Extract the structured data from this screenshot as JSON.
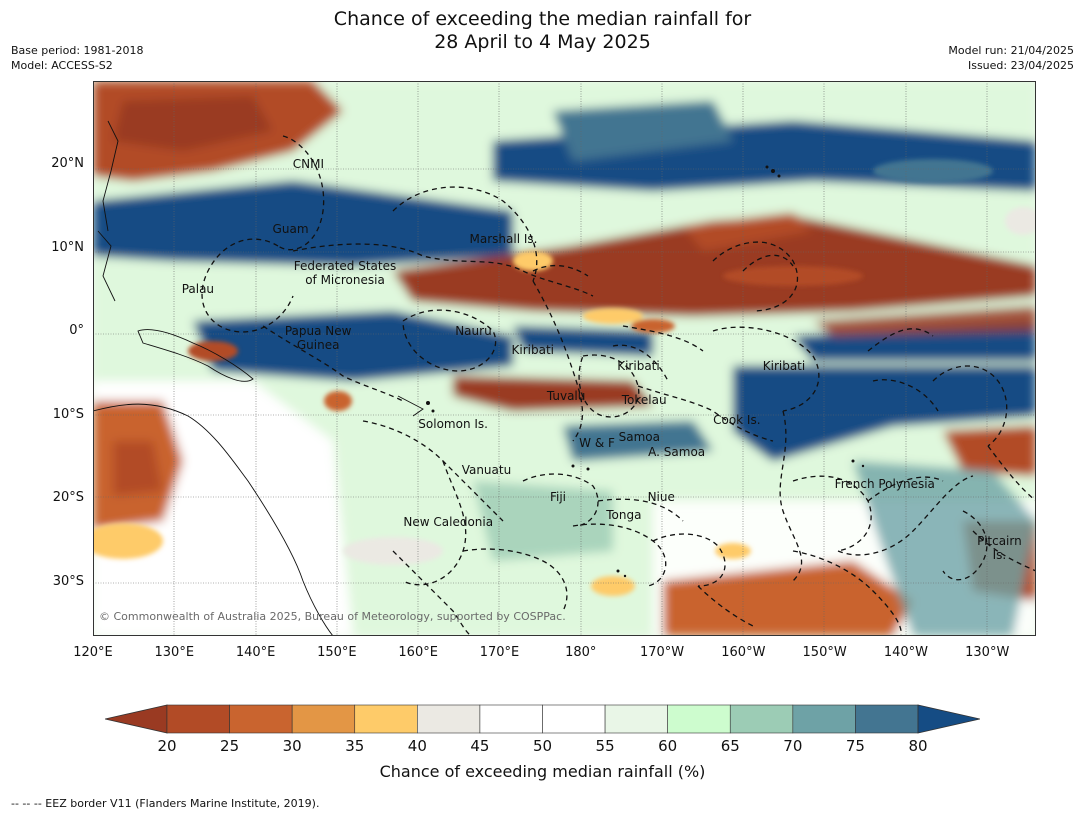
{
  "title": {
    "line1": "Chance of exceeding the median rainfall for",
    "line2": "28 April to 4 May 2025"
  },
  "meta": {
    "base_period": "Base period: 1981-2018",
    "model": "Model: ACCESS-S2",
    "model_run": "Model run: 21/04/2025",
    "issued": "Issued: 23/04/2025"
  },
  "axes": {
    "lat_ticks": [
      {
        "label": "20°N",
        "value": 20
      },
      {
        "label": "10°N",
        "value": 10
      },
      {
        "label": "0°",
        "value": 0
      },
      {
        "label": "10°S",
        "value": -10
      },
      {
        "label": "20°S",
        "value": -20
      },
      {
        "label": "30°S",
        "value": -30
      }
    ],
    "lon_ticks": [
      {
        "label": "120°E",
        "value": 120
      },
      {
        "label": "130°E",
        "value": 130
      },
      {
        "label": "140°E",
        "value": 140
      },
      {
        "label": "150°E",
        "value": 150
      },
      {
        "label": "160°E",
        "value": 160
      },
      {
        "label": "170°E",
        "value": 170
      },
      {
        "label": "180°",
        "value": 180
      },
      {
        "label": "170°W",
        "value": 190
      },
      {
        "label": "160°W",
        "value": 200
      },
      {
        "label": "150°W",
        "value": 210
      },
      {
        "label": "140°W",
        "value": 220
      },
      {
        "label": "130°W",
        "value": 230
      }
    ],
    "lon_range": [
      120,
      236
    ],
    "lat_range": [
      -36.5,
      30
    ]
  },
  "places": [
    {
      "label": "CNMI",
      "lon": 146.5,
      "lat": 20.0
    },
    {
      "label": "Guam",
      "lon": 144.3,
      "lat": 12.3
    },
    {
      "label": "Marshall Is.",
      "lon": 170.5,
      "lat": 11.1
    },
    {
      "label": "Federated States",
      "lon": 151.0,
      "lat": 7.8
    },
    {
      "label": "of Micronesia",
      "lon": 151.0,
      "lat": 6.1
    },
    {
      "label": "Palau",
      "lon": 132.9,
      "lat": 5.1
    },
    {
      "label": "Nauru",
      "lon": 166.8,
      "lat": 0.1
    },
    {
      "label": "Papua New",
      "lon": 147.7,
      "lat": 0.1
    },
    {
      "label": "Guinea",
      "lon": 147.7,
      "lat": -1.6
    },
    {
      "label": "Kiribati",
      "lon": 174.1,
      "lat": -2.2
    },
    {
      "label": "Kiribati",
      "lon": 187.1,
      "lat": -4.2
    },
    {
      "label": "Kiribati",
      "lon": 205.0,
      "lat": -4.2
    },
    {
      "label": "Tuvalu",
      "lon": 178.2,
      "lat": -7.8
    },
    {
      "label": "Tokelau",
      "lon": 187.8,
      "lat": -8.2
    },
    {
      "label": "Solomon Is.",
      "lon": 164.3,
      "lat": -11.1
    },
    {
      "label": "Cook Is.",
      "lon": 199.2,
      "lat": -10.6
    },
    {
      "label": "W & F",
      "lon": 182.0,
      "lat": -13.4
    },
    {
      "label": "Samoa",
      "lon": 187.2,
      "lat": -12.6
    },
    {
      "label": "A. Samoa",
      "lon": 191.8,
      "lat": -14.5
    },
    {
      "label": "Vanuatu",
      "lon": 168.4,
      "lat": -16.6
    },
    {
      "label": "French Polynesia",
      "lon": 217.4,
      "lat": -18.3
    },
    {
      "label": "Fiji",
      "lon": 177.2,
      "lat": -19.9
    },
    {
      "label": "Niue",
      "lon": 189.9,
      "lat": -19.9
    },
    {
      "label": "Tonga",
      "lon": 185.3,
      "lat": -22.0
    },
    {
      "label": "New Caledonia",
      "lon": 163.7,
      "lat": -22.9
    },
    {
      "label": "Pitcairn",
      "lon": 231.5,
      "lat": -25.1
    },
    {
      "label": "Is.",
      "lon": 231.5,
      "lat": -26.8
    }
  ],
  "copyright": "© Commonwealth of Australia 2025, Bureau of Meteorology, supported by COSPPac.",
  "legend": {
    "ticks": [
      "20",
      "25",
      "30",
      "35",
      "40",
      "45",
      "50",
      "55",
      "60",
      "65",
      "70",
      "75",
      "80"
    ],
    "colors": {
      "below20": "#9a3a22",
      "b20_25": "#b24b26",
      "b25_30": "#c9642f",
      "b30_35": "#e39645",
      "b35_40": "#fecb69",
      "b40_45": "#ebe9e3",
      "b45_50": "#ffffff",
      "b50_55": "#ffffff",
      "b55_60": "#e9f6e7",
      "b60_65": "#cdfcce",
      "b65_70": "#9cccb5",
      "b70_75": "#6ea2a6",
      "b75_80": "#437591",
      "above80": "#154c84"
    },
    "label": "Chance of exceeding median rainfall (%)"
  },
  "footnote": "--  --  -- EEZ border V11 (Flanders Marine Institute, 2019)."
}
